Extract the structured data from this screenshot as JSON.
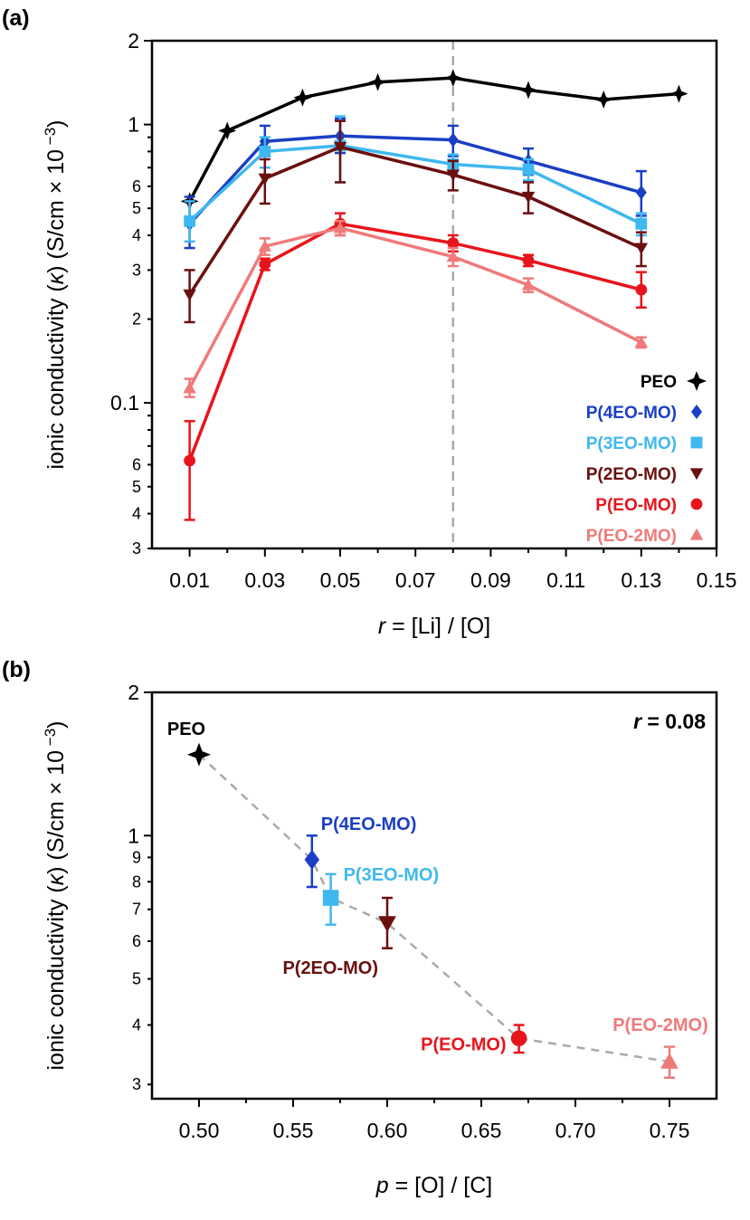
{
  "figure": {
    "panel_a_label": "(a)",
    "panel_b_label": "(b)"
  },
  "chart_data": [
    {
      "type": "line",
      "panel": "(a)",
      "xlabel": "r = [Li] / [O]",
      "xlabel_italic_part": "r",
      "xlabel_rest": " = [Li] / [O]",
      "ylabel": "ionic conductivity (κ) (S/cm × 10 −3)",
      "ylabel_parts": [
        "ionic conductivity (",
        "κ",
        ") (S/cm × 10",
        " −3",
        ")"
      ],
      "xlim": [
        0,
        0.15
      ],
      "ylim": [
        0.03,
        2
      ],
      "yscale": "log",
      "x_ticks": [
        "0.01",
        "0.03",
        "0.05",
        "0.07",
        "0.09",
        "0.11",
        "0.13",
        "0.15"
      ],
      "x_tick_values": [
        0.01,
        0.03,
        0.05,
        0.07,
        0.09,
        0.11,
        0.13,
        0.15
      ],
      "y_major_ticks": [
        {
          "label": "2",
          "value": 2
        },
        {
          "label": "1",
          "value": 1
        },
        {
          "label": "0.1",
          "value": 0.1
        }
      ],
      "y_minor_ticks": [
        {
          "label": "6",
          "value": 0.6
        },
        {
          "label": "5",
          "value": 0.5
        },
        {
          "label": "4",
          "value": 0.4
        },
        {
          "label": "3",
          "value": 0.3
        },
        {
          "label": "2",
          "value": 0.2
        },
        {
          "label": "6",
          "value": 0.06
        },
        {
          "label": "5",
          "value": 0.05
        },
        {
          "label": "4",
          "value": 0.04
        },
        {
          "label": "3",
          "value": 0.03
        }
      ],
      "vline": {
        "x": 0.08,
        "style": "dashed",
        "color": "#aaaaaa"
      },
      "legend_position": "bottom-right",
      "series": [
        {
          "name": "PEO",
          "color": "#000000",
          "marker": "star4",
          "points": [
            [
              0.01,
              0.53
            ],
            [
              0.02,
              0.95
            ],
            [
              0.04,
              1.25
            ],
            [
              0.06,
              1.42
            ],
            [
              0.08,
              1.47
            ],
            [
              0.1,
              1.33
            ],
            [
              0.12,
              1.23
            ],
            [
              0.14,
              1.29
            ]
          ],
          "err": [
            0,
            0,
            0,
            0,
            0,
            0,
            0,
            0
          ]
        },
        {
          "name": "P(4EO-MO)",
          "color": "#1a3fc4",
          "marker": "diamond",
          "points": [
            [
              0.01,
              0.44
            ],
            [
              0.03,
              0.87
            ],
            [
              0.05,
              0.91
            ],
            [
              0.08,
              0.88
            ],
            [
              0.1,
              0.74
            ],
            [
              0.13,
              0.57
            ]
          ],
          "err": [
            [
              0.36,
              0.55
            ],
            [
              0.77,
              0.99
            ],
            [
              0.79,
              1.05
            ],
            [
              0.77,
              0.99
            ],
            [
              0.66,
              0.82
            ],
            [
              0.47,
              0.68
            ]
          ]
        },
        {
          "name": "P(3EO-MO)",
          "color": "#3fb8f0",
          "marker": "square",
          "points": [
            [
              0.01,
              0.45
            ],
            [
              0.03,
              0.8
            ],
            [
              0.05,
              0.84
            ],
            [
              0.08,
              0.72
            ],
            [
              0.1,
              0.69
            ],
            [
              0.13,
              0.44
            ]
          ],
          "err": [
            [
              0.38,
              0.53
            ],
            [
              0.7,
              0.9
            ],
            [
              0.62,
              1.07
            ],
            [
              0.66,
              0.78
            ],
            [
              0.63,
              0.75
            ],
            [
              0.4,
              0.48
            ]
          ]
        },
        {
          "name": "P(2EO-MO)",
          "color": "#6b0f0f",
          "marker": "triangle-down",
          "points": [
            [
              0.01,
              0.245
            ],
            [
              0.03,
              0.64
            ],
            [
              0.05,
              0.83
            ],
            [
              0.08,
              0.66
            ],
            [
              0.1,
              0.55
            ],
            [
              0.13,
              0.36
            ]
          ],
          "err": [
            [
              0.195,
              0.3
            ],
            [
              0.52,
              0.75
            ],
            [
              0.62,
              1.03
            ],
            [
              0.58,
              0.74
            ],
            [
              0.48,
              0.62
            ],
            [
              0.31,
              0.41
            ]
          ]
        },
        {
          "name": "P(EO-MO)",
          "color": "#e8141b",
          "marker": "circle",
          "points": [
            [
              0.01,
              0.062
            ],
            [
              0.03,
              0.315
            ],
            [
              0.05,
              0.44
            ],
            [
              0.08,
              0.375
            ],
            [
              0.1,
              0.325
            ],
            [
              0.13,
              0.255
            ]
          ],
          "err": [
            [
              0.038,
              0.086
            ],
            [
              0.3,
              0.33
            ],
            [
              0.4,
              0.48
            ],
            [
              0.35,
              0.4
            ],
            [
              0.31,
              0.34
            ],
            [
              0.22,
              0.295
            ]
          ]
        },
        {
          "name": "P(EO-2MO)",
          "color": "#f07a7a",
          "marker": "triangle-up",
          "points": [
            [
              0.01,
              0.113
            ],
            [
              0.03,
              0.365
            ],
            [
              0.05,
              0.425
            ],
            [
              0.08,
              0.335
            ],
            [
              0.1,
              0.265
            ],
            [
              0.13,
              0.165
            ]
          ],
          "err": [
            [
              0.105,
              0.122
            ],
            [
              0.34,
              0.39
            ],
            [
              0.4,
              0.45
            ],
            [
              0.31,
              0.36
            ],
            [
              0.25,
              0.28
            ],
            [
              0.158,
              0.172
            ]
          ]
        }
      ]
    },
    {
      "type": "scatter",
      "panel": "(b)",
      "xlabel": "p = [O] / [C]",
      "xlabel_italic_part": "p",
      "xlabel_rest": " = [O] / [C]",
      "ylabel": "ionic conductivity (κ) (S/cm × 10 −3)",
      "ylabel_parts": [
        "ionic conductivity (",
        "κ",
        ") (S/cm × 10",
        " −3",
        ")"
      ],
      "xlim": [
        0.475,
        0.775
      ],
      "ylim": [
        0.28,
        2
      ],
      "yscale": "log",
      "x_ticks": [
        "0.50",
        "0.55",
        "0.60",
        "0.65",
        "0.70",
        "0.75"
      ],
      "x_tick_values": [
        0.5,
        0.55,
        0.6,
        0.65,
        0.7,
        0.75
      ],
      "y_major_ticks": [
        {
          "label": "2",
          "value": 2
        },
        {
          "label": "1",
          "value": 1
        }
      ],
      "y_minor_ticks": [
        {
          "label": "9",
          "value": 0.9
        },
        {
          "label": "8",
          "value": 0.8
        },
        {
          "label": "7",
          "value": 0.7
        },
        {
          "label": "6",
          "value": 0.6
        },
        {
          "label": "5",
          "value": 0.5
        },
        {
          "label": "4",
          "value": 0.4
        },
        {
          "label": "3",
          "value": 0.3
        }
      ],
      "annotation_italic": "r",
      "annotation_rest": " = 0.08",
      "trend_line": {
        "style": "dashed",
        "color": "#aaaaaa"
      },
      "points": [
        {
          "name": "PEO",
          "x": 0.5,
          "y": 1.48,
          "color": "#000000",
          "marker": "star4",
          "err": null,
          "label_side": "above-left"
        },
        {
          "name": "P(4EO-MO)",
          "x": 0.56,
          "y": 0.89,
          "color": "#1a3fc4",
          "marker": "diamond",
          "err": [
            0.78,
            1.0
          ],
          "label_side": "above-right"
        },
        {
          "name": "P(3EO-MO)",
          "x": 0.57,
          "y": 0.74,
          "color": "#3fb8f0",
          "marker": "square",
          "err": [
            0.65,
            0.83
          ],
          "label_side": "right"
        },
        {
          "name": "P(2EO-MO)",
          "x": 0.6,
          "y": 0.655,
          "color": "#6b0f0f",
          "marker": "triangle-down",
          "err": [
            0.58,
            0.74
          ],
          "label_side": "below-left"
        },
        {
          "name": "P(EO-MO)",
          "x": 0.67,
          "y": 0.375,
          "color": "#e8141b",
          "marker": "circle",
          "err": [
            0.35,
            0.4
          ],
          "label_side": "left"
        },
        {
          "name": "P(EO-2MO)",
          "x": 0.75,
          "y": 0.335,
          "color": "#f07a7a",
          "marker": "triangle-up",
          "err": [
            0.31,
            0.36
          ],
          "label_side": "above"
        }
      ]
    }
  ]
}
